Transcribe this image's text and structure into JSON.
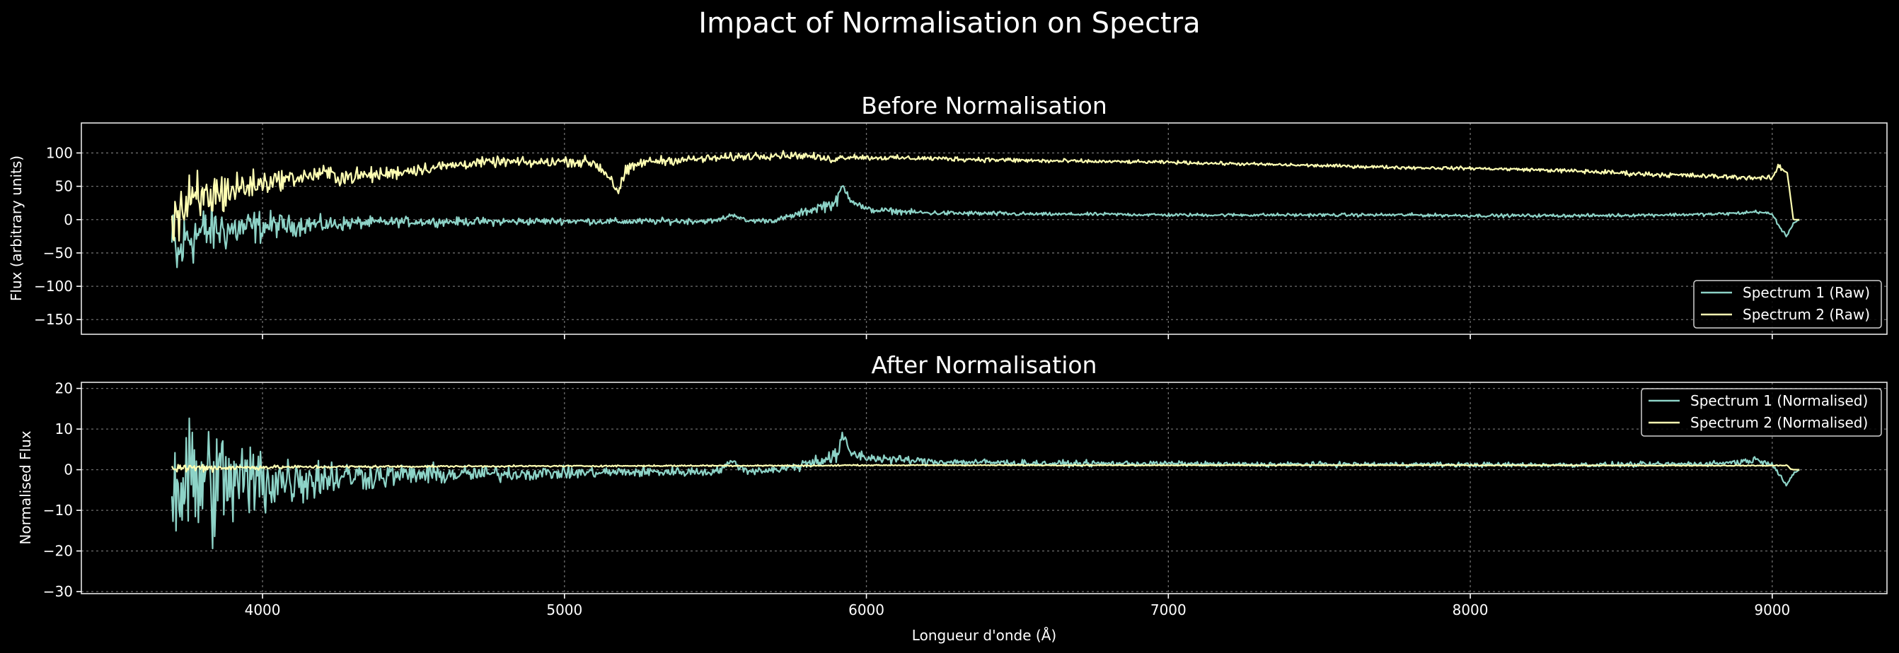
{
  "chart_data": {
    "suptitle": "Impact of Normalisation on Spectra",
    "x_range": [
      3400,
      9380
    ],
    "x_ticks": [
      4000,
      5000,
      6000,
      7000,
      8000,
      9000
    ],
    "xlabel": "Longueur d'onde (Å)",
    "colors": {
      "spectrum1": "#8dd3c7",
      "spectrum2": "#ffffb3"
    },
    "subplots": [
      {
        "type": "line",
        "title": "Before Normalisation",
        "ylabel": "Flux (arbitrary units)",
        "ylim": [
          -172,
          145
        ],
        "yticks": [
          -150,
          -100,
          -50,
          0,
          50,
          100
        ],
        "legend_position": "lower right",
        "series": [
          {
            "name": "Spectrum 1 (Raw)",
            "x": [
              3700,
              3720,
              3750,
              3800,
              3850,
              3900,
              3950,
              4000,
              4050,
              4100,
              4150,
              4200,
              4300,
              4400,
              4500,
              4600,
              4800,
              5000,
              5200,
              5400,
              5500,
              5560,
              5600,
              5700,
              5750,
              5800,
              5850,
              5900,
              5920,
              5950,
              6000,
              6200,
              6400,
              6600,
              6800,
              7000,
              7200,
              7400,
              7600,
              7800,
              8000,
              8200,
              8400,
              8600,
              8800,
              8900,
              8950,
              9000,
              9030,
              9050,
              9070,
              9090
            ],
            "y": [
              -40,
              -60,
              -25,
              -20,
              -15,
              -15,
              -12,
              -10,
              -8,
              -10,
              -6,
              -8,
              -5,
              -4,
              -3,
              -3,
              -3,
              -2,
              -3,
              -2,
              -2,
              8,
              -2,
              -1,
              5,
              12,
              20,
              25,
              50,
              30,
              15,
              10,
              9,
              8,
              8,
              7,
              7,
              7,
              7,
              7,
              6,
              6,
              6,
              7,
              8,
              10,
              12,
              8,
              -15,
              -25,
              -5,
              0
            ],
            "noise": [
              50,
              45,
              40,
              35,
              30,
              25,
              22,
              20,
              15,
              12,
              12,
              10,
              8,
              6,
              6,
              5,
              5,
              4,
              4,
              4,
              3,
              3,
              3,
              3,
              4,
              5,
              7,
              8,
              6,
              5,
              4,
              3,
              3,
              2,
              2,
              2,
              2,
              2,
              2,
              2,
              2,
              2,
              2,
              2,
              2,
              2,
              2,
              2,
              2,
              2,
              1,
              0
            ]
          },
          {
            "name": "Spectrum 2 (Raw)",
            "x": [
              3700,
              3720,
              3750,
              3800,
              3850,
              3900,
              3950,
              4000,
              4050,
              4100,
              4150,
              4200,
              4250,
              4300,
              4400,
              4500,
              4600,
              4700,
              4800,
              4900,
              5000,
              5100,
              5150,
              5180,
              5200,
              5250,
              5300,
              5400,
              5500,
              5600,
              5700,
              5800,
              5880,
              5900,
              5950,
              6000,
              6200,
              6400,
              6600,
              6800,
              7000,
              7200,
              7400,
              7600,
              7800,
              8000,
              8200,
              8400,
              8600,
              8800,
              9000,
              9020,
              9050,
              9070,
              9090
            ],
            "y": [
              20,
              10,
              15,
              30,
              40,
              45,
              50,
              55,
              60,
              62,
              65,
              70,
              65,
              65,
              68,
              75,
              80,
              85,
              87,
              85,
              88,
              85,
              65,
              40,
              70,
              85,
              88,
              90,
              92,
              95,
              97,
              96,
              90,
              92,
              95,
              93,
              92,
              90,
              88,
              87,
              86,
              84,
              82,
              80,
              78,
              77,
              75,
              72,
              68,
              65,
              62,
              80,
              70,
              0,
              0
            ],
            "noise": [
              55,
              50,
              45,
              35,
              30,
              25,
              20,
              15,
              12,
              10,
              10,
              10,
              12,
              10,
              9,
              8,
              7,
              6,
              6,
              6,
              6,
              8,
              10,
              8,
              8,
              6,
              6,
              5,
              5,
              5,
              5,
              4,
              5,
              4,
              4,
              3,
              3,
              3,
              3,
              2,
              2,
              2,
              2,
              2,
              2,
              2,
              2,
              3,
              3,
              3,
              3,
              3,
              2,
              0,
              0
            ]
          }
        ]
      },
      {
        "type": "line",
        "title": "After Normalisation",
        "ylabel": "Normalised Flux",
        "ylim": [
          -30.5,
          21.5
        ],
        "yticks": [
          -30,
          -20,
          -10,
          0,
          10,
          20
        ],
        "legend_position": "upper right",
        "series": [
          {
            "name": "Spectrum 1 (Normalised)",
            "x": [
              3700,
              3720,
              3750,
              3800,
              3850,
              3900,
              3950,
              4000,
              4050,
              4100,
              4150,
              4200,
              4300,
              4400,
              4500,
              4600,
              4800,
              5000,
              5200,
              5400,
              5500,
              5560,
              5600,
              5700,
              5750,
              5800,
              5850,
              5900,
              5920,
              5950,
              6000,
              6200,
              6400,
              6600,
              6800,
              7000,
              7200,
              7400,
              7600,
              7800,
              8000,
              8200,
              8400,
              8600,
              8800,
              8900,
              8950,
              9000,
              9030,
              9050,
              9070,
              9090
            ],
            "y": [
              -2,
              -5,
              -3,
              -3,
              -3,
              -3,
              -3,
              -2.5,
              -2.5,
              -2.5,
              -2,
              -2,
              -1.5,
              -1.5,
              -1.2,
              -1.2,
              -1,
              -0.8,
              -0.6,
              -0.5,
              -0.5,
              2,
              -0.3,
              0,
              0.5,
              1.5,
              2.5,
              3,
              8,
              4,
              3,
              2,
              1.8,
              1.5,
              1.5,
              1.5,
              1.3,
              1.3,
              1.3,
              1.3,
              1.2,
              1.2,
              1.2,
              1.3,
              1.5,
              2,
              2.5,
              1.5,
              -2,
              -4,
              -1,
              0
            ],
            "noise": [
              15,
              16,
              14,
              13,
              12,
              10,
              9,
              8,
              6,
              5,
              5,
              4,
              3,
              2.5,
              2,
              2,
              1.5,
              1.2,
              1,
              1,
              0.8,
              0.8,
              0.8,
              0.8,
              1,
              1.2,
              1.5,
              1.8,
              1.5,
              1.2,
              1,
              0.8,
              0.7,
              0.6,
              0.6,
              0.5,
              0.5,
              0.5,
              0.5,
              0.5,
              0.5,
              0.5,
              0.5,
              0.5,
              0.5,
              0.6,
              0.6,
              0.6,
              0.5,
              0.5,
              0.3,
              0
            ]
          },
          {
            "name": "Spectrum 2 (Normalised)",
            "x": [
              3700,
              3750,
              3800,
              3900,
              4000,
              4200,
              4500,
              5000,
              5500,
              5900,
              5910,
              6000,
              7000,
              8000,
              9000,
              9050,
              9060,
              9070,
              9090
            ],
            "y": [
              0.3,
              0.5,
              0.5,
              0.5,
              0.6,
              0.7,
              0.8,
              0.9,
              1,
              1,
              1.1,
              1.1,
              1.1,
              1.1,
              1,
              1.1,
              0.2,
              0,
              0
            ],
            "noise": [
              1.2,
              1,
              0.8,
              0.6,
              0.4,
              0.3,
              0.2,
              0.15,
              0.15,
              0.15,
              0.15,
              0.1,
              0.1,
              0.1,
              0.1,
              0.1,
              0,
              0,
              0
            ]
          }
        ]
      }
    ]
  }
}
